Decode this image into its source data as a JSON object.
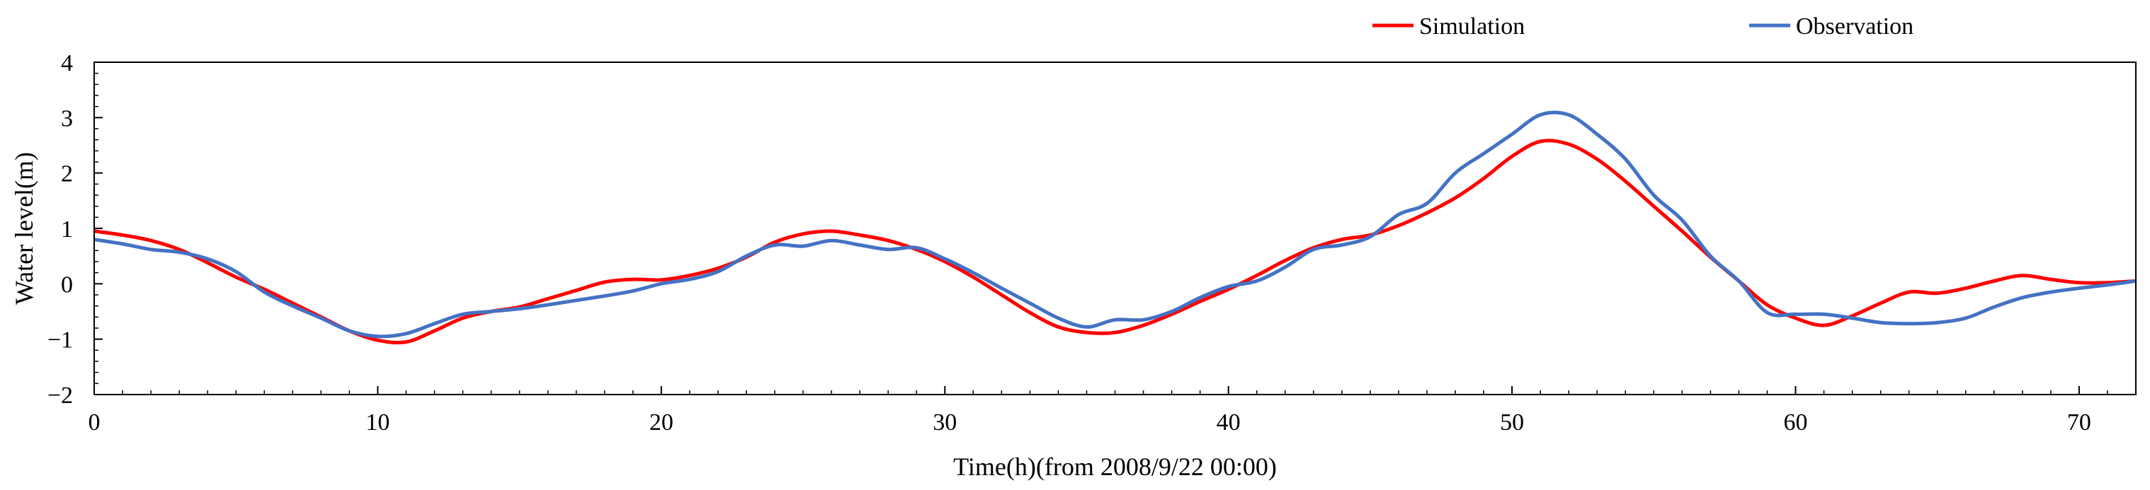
{
  "chart_data": {
    "type": "line",
    "xlabel": "Time(h)(from 2008/9/22 00:00)",
    "ylabel": "Water level(m)",
    "xlim": [
      0,
      72
    ],
    "ylim": [
      -2,
      4
    ],
    "xticks": [
      0,
      10,
      20,
      30,
      40,
      50,
      60,
      70
    ],
    "yticks": [
      -2,
      -1,
      0,
      1,
      2,
      3,
      4
    ],
    "grid": false,
    "legend_position": "top-right",
    "series": [
      {
        "name": "Simulation",
        "color": "#ff0000",
        "x": [
          0,
          1,
          2,
          3,
          4,
          5,
          6,
          7,
          8,
          9,
          10,
          11,
          12,
          13,
          14,
          15,
          16,
          17,
          18,
          19,
          20,
          21,
          22,
          23,
          24,
          25,
          26,
          27,
          28,
          29,
          30,
          31,
          32,
          33,
          34,
          35,
          36,
          37,
          38,
          39,
          40,
          41,
          42,
          43,
          44,
          45,
          46,
          47,
          48,
          49,
          50,
          51,
          52,
          53,
          54,
          55,
          56,
          57,
          58,
          59,
          60,
          61,
          62,
          63,
          64,
          65,
          66,
          67,
          68,
          69,
          70,
          71,
          72
        ],
        "values": [
          0.95,
          0.88,
          0.78,
          0.62,
          0.38,
          0.12,
          -0.1,
          -0.35,
          -0.6,
          -0.85,
          -1.02,
          -1.05,
          -0.85,
          -0.62,
          -0.5,
          -0.42,
          -0.27,
          -0.12,
          0.03,
          0.08,
          0.07,
          0.15,
          0.28,
          0.48,
          0.75,
          0.9,
          0.95,
          0.88,
          0.78,
          0.62,
          0.4,
          0.12,
          -0.2,
          -0.52,
          -0.78,
          -0.88,
          -0.88,
          -0.75,
          -0.55,
          -0.32,
          -0.1,
          0.15,
          0.42,
          0.65,
          0.8,
          0.88,
          1.05,
          1.28,
          1.55,
          1.9,
          2.3,
          2.57,
          2.52,
          2.25,
          1.85,
          1.4,
          0.95,
          0.48,
          0.05,
          -0.38,
          -0.62,
          -0.75,
          -0.58,
          -0.35,
          -0.15,
          -0.17,
          -0.08,
          0.05,
          0.15,
          0.08,
          0.02,
          0.02,
          0.05
        ]
      },
      {
        "name": "Observation",
        "color": "#4472c4",
        "x": [
          0,
          1,
          2,
          3,
          4,
          5,
          6,
          7,
          8,
          9,
          10,
          11,
          12,
          13,
          14,
          15,
          16,
          17,
          18,
          19,
          20,
          21,
          22,
          23,
          24,
          25,
          26,
          27,
          28,
          29,
          30,
          31,
          32,
          33,
          34,
          35,
          36,
          37,
          38,
          39,
          40,
          41,
          42,
          43,
          44,
          45,
          46,
          47,
          48,
          49,
          50,
          51,
          52,
          53,
          54,
          55,
          56,
          57,
          58,
          59,
          60,
          61,
          62,
          63,
          64,
          65,
          66,
          67,
          68,
          69,
          70,
          71,
          72
        ],
        "values": [
          0.8,
          0.72,
          0.62,
          0.57,
          0.45,
          0.22,
          -0.15,
          -0.4,
          -0.62,
          -0.85,
          -0.95,
          -0.9,
          -0.72,
          -0.55,
          -0.5,
          -0.45,
          -0.38,
          -0.3,
          -0.22,
          -0.13,
          0.0,
          0.08,
          0.22,
          0.5,
          0.7,
          0.68,
          0.78,
          0.7,
          0.62,
          0.65,
          0.45,
          0.2,
          -0.08,
          -0.35,
          -0.62,
          -0.78,
          -0.65,
          -0.65,
          -0.5,
          -0.25,
          -0.05,
          0.05,
          0.3,
          0.62,
          0.7,
          0.85,
          1.25,
          1.45,
          2.0,
          2.35,
          2.7,
          3.05,
          3.05,
          2.7,
          2.25,
          1.6,
          1.15,
          0.5,
          0.05,
          -0.52,
          -0.55,
          -0.55,
          -0.62,
          -0.7,
          -0.72,
          -0.7,
          -0.62,
          -0.42,
          -0.25,
          -0.15,
          -0.08,
          -0.02,
          0.05
        ]
      }
    ]
  }
}
